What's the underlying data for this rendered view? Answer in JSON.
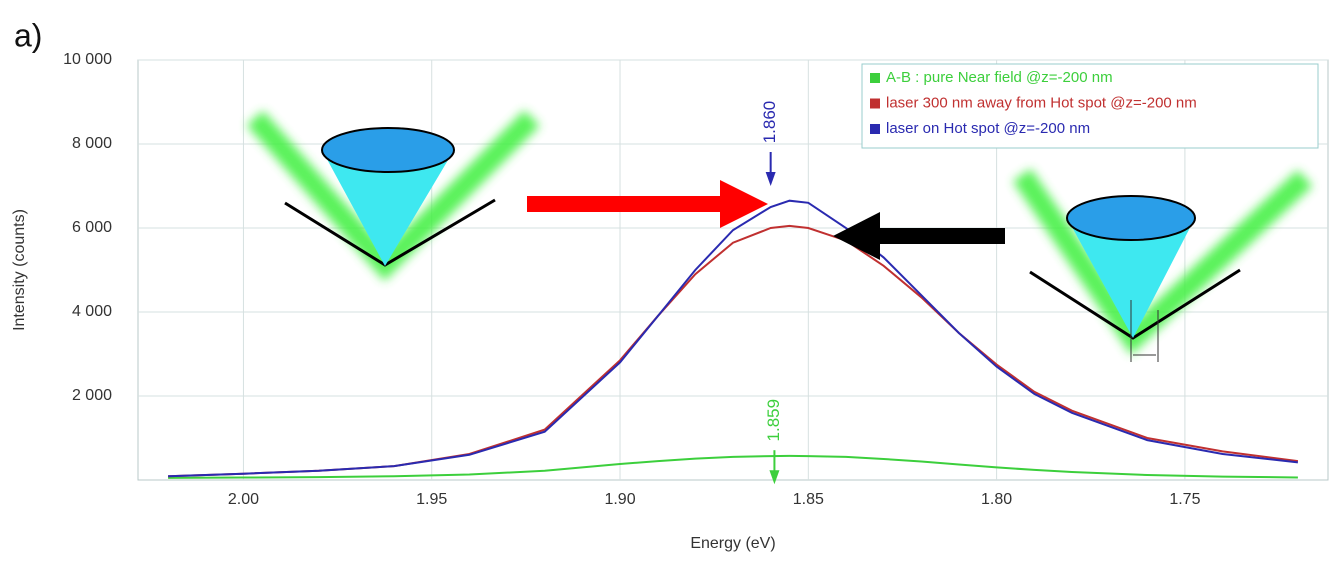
{
  "chart_data": {
    "type": "line",
    "panel_label": "a)",
    "x_label": "Energy (eV)",
    "y_label": "Intensity (counts)",
    "xlim": [
      2.028,
      1.712
    ],
    "ylim": [
      0,
      10000
    ],
    "xticks": [
      {
        "value": 2.0,
        "label": "2.00"
      },
      {
        "value": 1.95,
        "label": "1.95"
      },
      {
        "value": 1.9,
        "label": "1.90"
      },
      {
        "value": 1.85,
        "label": "1.85"
      },
      {
        "value": 1.8,
        "label": "1.80"
      },
      {
        "value": 1.75,
        "label": "1.75"
      }
    ],
    "yticks": [
      {
        "value": 2000,
        "label": "2 000"
      },
      {
        "value": 4000,
        "label": "4 000"
      },
      {
        "value": 6000,
        "label": "6 000"
      },
      {
        "value": 8000,
        "label": "8 000"
      },
      {
        "value": 10000,
        "label": "10 000"
      }
    ],
    "grid": true,
    "legend_position": "top-right",
    "x": [
      2.02,
      2.0,
      1.98,
      1.96,
      1.94,
      1.92,
      1.9,
      1.89,
      1.88,
      1.87,
      1.86,
      1.855,
      1.85,
      1.84,
      1.83,
      1.82,
      1.81,
      1.8,
      1.79,
      1.78,
      1.76,
      1.74,
      1.72
    ],
    "series": [
      {
        "name": "A-B : pure Near field @z=-200 nm",
        "color": "#3ccf3c",
        "values": [
          50,
          60,
          70,
          90,
          130,
          220,
          380,
          450,
          510,
          550,
          570,
          575,
          570,
          550,
          500,
          440,
          370,
          300,
          240,
          190,
          120,
          80,
          60
        ]
      },
      {
        "name": "laser 300 nm away from Hot spot @z=-200 nm",
        "color": "#c03030",
        "values": [
          90,
          150,
          220,
          330,
          620,
          1200,
          2850,
          3900,
          4900,
          5650,
          6000,
          6050,
          6000,
          5700,
          5100,
          4350,
          3500,
          2750,
          2100,
          1650,
          1000,
          680,
          450
        ]
      },
      {
        "name": "laser on Hot spot @z=-200 nm",
        "color": "#2a2ab0",
        "values": [
          90,
          150,
          220,
          330,
          600,
          1150,
          2800,
          3900,
          5000,
          5950,
          6500,
          6650,
          6600,
          6000,
          5300,
          4400,
          3500,
          2700,
          2050,
          1600,
          950,
          620,
          420
        ]
      }
    ],
    "annotations": [
      {
        "x": 1.86,
        "label": "1.860",
        "color": "#2a2ab0",
        "y": 8000
      },
      {
        "x": 1.859,
        "label": "1.859",
        "color": "#3ccf3c",
        "y": 900
      }
    ]
  }
}
